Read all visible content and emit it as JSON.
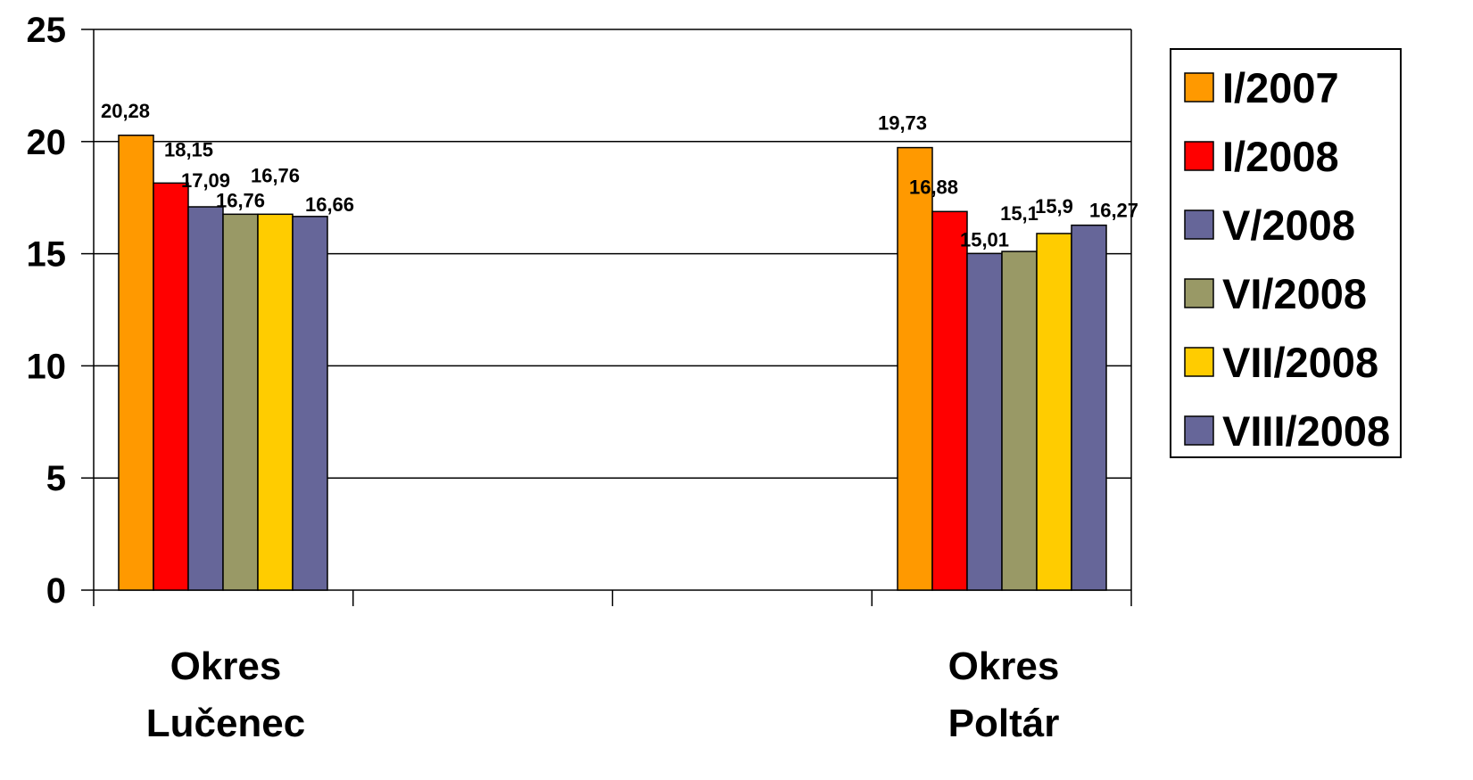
{
  "chart_data": {
    "type": "bar",
    "title": "",
    "xlabel": "",
    "ylabel": "",
    "ylim": [
      0,
      25
    ],
    "yticks": [
      0,
      5,
      10,
      15,
      20,
      25
    ],
    "grid": true,
    "legend_position": "right",
    "categories": [
      [
        "Okres",
        "Lučenec"
      ],
      [
        "Okres",
        "Poltár"
      ]
    ],
    "series": [
      {
        "name": "I/2007",
        "color": "#FF9900",
        "values": [
          20.28,
          19.73
        ],
        "labels": [
          "20,28",
          "19,73"
        ]
      },
      {
        "name": "I/2008",
        "color": "#FF0000",
        "values": [
          18.15,
          16.88
        ],
        "labels": [
          "18,15",
          "16,88"
        ]
      },
      {
        "name": "V/2008",
        "color": "#666699",
        "values": [
          17.09,
          15.01
        ],
        "labels": [
          "17,09",
          "15,01"
        ]
      },
      {
        "name": "VI/2008",
        "color": "#999966",
        "values": [
          16.76,
          15.1
        ],
        "labels": [
          "16,76",
          "15,1"
        ]
      },
      {
        "name": "VII/2008",
        "color": "#FFCC00",
        "values": [
          16.76,
          15.9
        ],
        "labels": [
          "16,76",
          "15,9"
        ]
      },
      {
        "name": "VIII/2008",
        "color": "#666699",
        "values": [
          16.66,
          16.27
        ],
        "labels": [
          "16,66",
          "16,27"
        ]
      }
    ]
  }
}
